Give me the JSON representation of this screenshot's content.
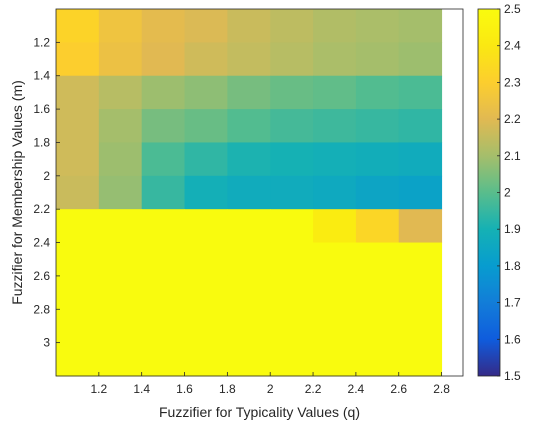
{
  "chart_data": {
    "type": "heatmap",
    "title": "",
    "xlabel": "Fuzzifier for Typicality Values (q)",
    "ylabel": "Fuzzifier for Membership Values (m)",
    "x": [
      1.1,
      1.3,
      1.5,
      1.7,
      1.9,
      2.1,
      2.3,
      2.5,
      2.7
    ],
    "y": [
      1.1,
      1.3,
      1.5,
      1.7,
      1.9,
      2.1,
      2.3,
      2.5,
      2.7,
      2.9,
      3.1
    ],
    "xlim": [
      1.0,
      2.9
    ],
    "ylim": [
      3.2,
      1.0
    ],
    "x_tick_labels": [
      "1.2",
      "1.4",
      "1.6",
      "1.8",
      "2",
      "2.2",
      "2.4",
      "2.6",
      "2.8"
    ],
    "y_tick_labels": [
      "1.2",
      "1.4",
      "1.6",
      "1.8",
      "2",
      "2.2",
      "2.4",
      "2.6",
      "2.8",
      "3"
    ],
    "colorbar": {
      "range": [
        1.5,
        2.5
      ],
      "tick_labels": [
        "1.5",
        "1.6",
        "1.7",
        "1.8",
        "1.9",
        "2",
        "2.1",
        "2.2",
        "2.3",
        "2.4",
        "2.5"
      ],
      "colormap": "parula"
    },
    "z": [
      [
        2.32,
        2.25,
        2.21,
        2.19,
        2.16,
        2.14,
        2.12,
        2.11,
        2.1
      ],
      [
        2.3,
        2.24,
        2.2,
        2.17,
        2.15,
        2.13,
        2.11,
        2.1,
        2.09
      ],
      [
        2.17,
        2.13,
        2.09,
        2.07,
        2.04,
        2.02,
        2.01,
        1.99,
        1.98
      ],
      [
        2.17,
        2.1,
        2.04,
        2.02,
        1.99,
        1.97,
        1.96,
        1.95,
        1.94
      ],
      [
        2.17,
        2.09,
        1.98,
        1.94,
        1.91,
        1.9,
        1.89,
        1.88,
        1.87
      ],
      [
        2.16,
        2.08,
        1.95,
        1.89,
        1.87,
        1.87,
        1.86,
        1.84,
        1.83
      ],
      [
        2.5,
        2.5,
        2.5,
        2.5,
        2.5,
        2.5,
        2.42,
        2.33,
        2.2
      ],
      [
        2.5,
        2.5,
        2.5,
        2.5,
        2.5,
        2.5,
        2.5,
        2.5,
        2.5
      ],
      [
        2.5,
        2.5,
        2.5,
        2.5,
        2.5,
        2.5,
        2.5,
        2.5,
        2.5
      ],
      [
        2.5,
        2.5,
        2.5,
        2.5,
        2.5,
        2.5,
        2.5,
        2.5,
        2.5
      ],
      [
        2.5,
        2.5,
        2.5,
        2.5,
        2.5,
        2.5,
        2.5,
        2.5,
        2.5
      ]
    ]
  }
}
